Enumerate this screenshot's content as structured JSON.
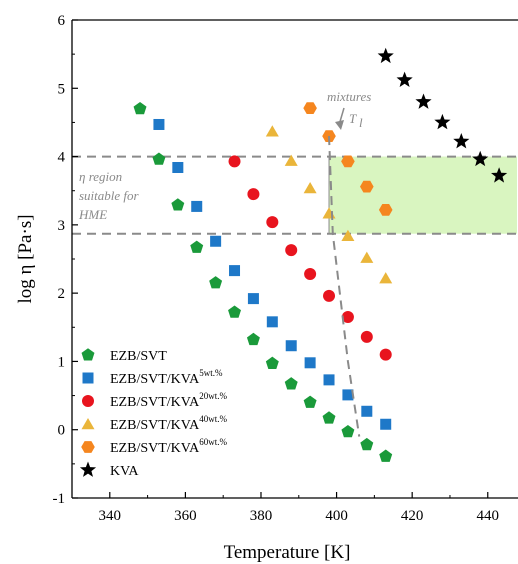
{
  "chart_data": {
    "type": "scatter",
    "xlabel": "Temperature [K]",
    "ylabel": "log η [Pa·s]",
    "xlim": [
      330,
      448
    ],
    "ylim": [
      -1,
      6
    ],
    "xticks": [
      340,
      360,
      380,
      400,
      420,
      440
    ],
    "yticks": [
      -1,
      0,
      1,
      2,
      3,
      4,
      5,
      6
    ],
    "grid": false,
    "legend_position": "bottom-left",
    "hme_region": {
      "label_line1": "η region",
      "label_line2": "suitable for",
      "label_line3": "HME",
      "y_low": 2.87,
      "y_high": 4.0,
      "shaded_x_from": 398,
      "shaded_color": "#d9f5c0"
    },
    "mixtures_annotation": {
      "label": "mixtures",
      "symbol_base": "T",
      "symbol_sub": "l"
    },
    "series": [
      {
        "name": "EZB/SVT",
        "sup": "",
        "color": "#1a9a3a",
        "marker": "pentagon",
        "x": [
          348,
          353,
          358,
          363,
          368,
          373,
          378,
          383,
          388,
          393,
          398,
          403,
          408,
          413
        ],
        "y": [
          4.7,
          3.96,
          3.29,
          2.67,
          2.15,
          1.72,
          1.32,
          0.97,
          0.67,
          0.4,
          0.17,
          -0.03,
          -0.22,
          -0.39
        ],
        "curve_x": [
          339,
          438
        ],
        "curve_params": {
          "A": -7.6,
          "B": 1920,
          "T0": 304.5
        }
      },
      {
        "name": "EZB/SVT/KVA",
        "sup": "5wt.%",
        "color": "#1e78c8",
        "marker": "square",
        "x": [
          353,
          358,
          363,
          368,
          373,
          378,
          383,
          388,
          393,
          398,
          403,
          408,
          413
        ],
        "y": [
          4.47,
          3.84,
          3.27,
          2.76,
          2.33,
          1.92,
          1.58,
          1.23,
          0.98,
          0.73,
          0.51,
          0.27,
          0.08
        ],
        "curve_x": [
          345,
          448
        ],
        "curve_params": {
          "A": -7.6,
          "B": 2100,
          "T0": 306.0
        }
      },
      {
        "name": "EZB/SVT/KVA",
        "sup": "20wt.%",
        "color": "#e8141e",
        "marker": "circle",
        "x": [
          373,
          378,
          383,
          388,
          393,
          398,
          403,
          408,
          413
        ],
        "y": [
          3.93,
          3.45,
          3.04,
          2.63,
          2.28,
          1.96,
          1.65,
          1.36,
          1.1
        ],
        "curve_x": [
          365,
          448
        ],
        "curve_params": {
          "A": -7.6,
          "B": 2300,
          "T0": 317.5
        }
      },
      {
        "name": "EZB/SVT/KVA",
        "sup": "40wt.%",
        "color": "#eab53a",
        "marker": "triangle",
        "x": [
          383,
          388,
          393,
          398,
          403,
          408,
          413
        ],
        "y": [
          4.37,
          3.94,
          3.54,
          3.17,
          2.84,
          2.52,
          2.22
        ],
        "curve_x": [
          375,
          448
        ],
        "curve_params": {
          "A": -7.6,
          "B": 2450,
          "T0": 323.0
        }
      },
      {
        "name": "EZB/SVT/KVA",
        "sup": "60wt.%",
        "color": "#f5861f",
        "marker": "hexagon",
        "x": [
          393,
          398,
          403,
          408,
          413
        ],
        "y": [
          4.71,
          4.3,
          3.93,
          3.56,
          3.22
        ],
        "curve_x": [
          387,
          448
        ],
        "curve_params": {
          "A": -7.6,
          "B": 2630,
          "T0": 329.0
        }
      },
      {
        "name": "KVA",
        "sup": "",
        "color": "#000000",
        "marker": "star",
        "x": [
          413,
          418,
          423,
          428,
          433,
          438,
          443
        ],
        "y": [
          5.47,
          5.12,
          4.8,
          4.5,
          4.22,
          3.96,
          3.72
        ],
        "curve_x": [
          408,
          448
        ],
        "curve_params": {
          "A": -7.6,
          "B": 3500,
          "T0": 318.0
        }
      }
    ],
    "tl_line": {
      "x": [
        398,
        399,
        403,
        406
      ],
      "y": [
        4.3,
        2.87,
        1.0,
        -0.1
      ]
    }
  }
}
